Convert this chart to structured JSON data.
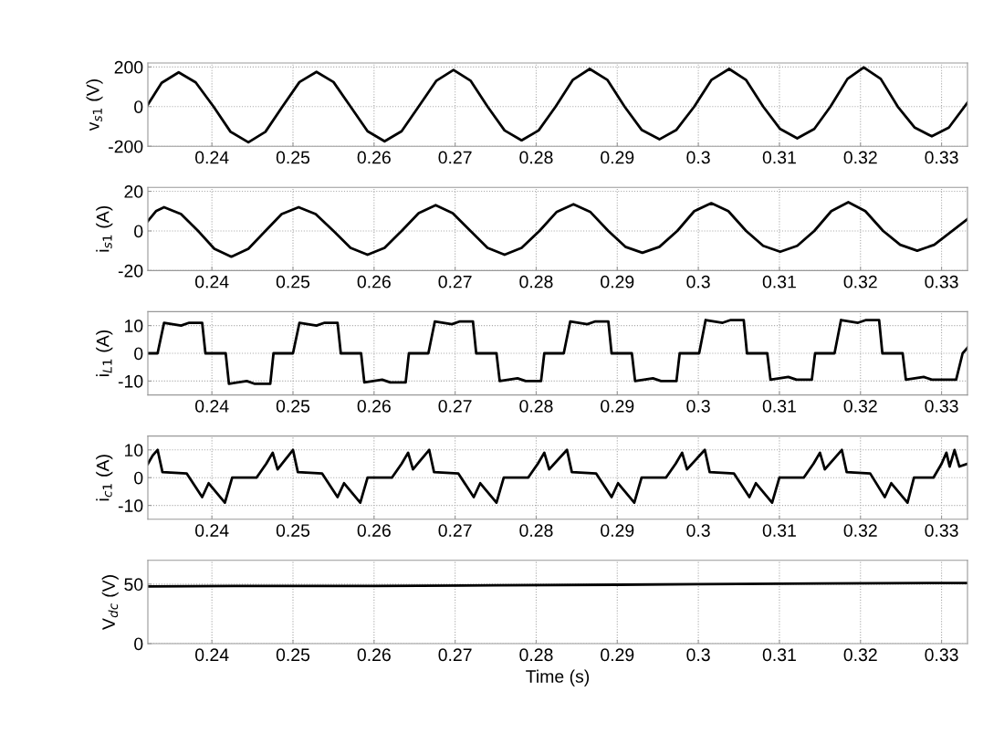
{
  "chart_data": [
    {
      "type": "line",
      "ylabel": "v$_{s1}$ (V)",
      "xlim": [
        0.2321,
        0.3332
      ],
      "xticks": [
        0.24,
        0.25,
        0.26,
        0.27,
        0.28,
        0.29,
        0.3,
        0.31,
        0.32,
        0.33
      ],
      "ylim": [
        -200,
        220
      ],
      "yticks": [
        -200,
        0,
        200
      ],
      "grid": true,
      "x": [
        0.2321,
        0.2338,
        0.2359,
        0.238,
        0.2402,
        0.2423,
        0.2445,
        0.2466,
        0.2487,
        0.2508,
        0.2529,
        0.255,
        0.2571,
        0.2592,
        0.2613,
        0.2634,
        0.2655,
        0.2677,
        0.2698,
        0.2719,
        0.274,
        0.2761,
        0.2782,
        0.2803,
        0.2824,
        0.2845,
        0.2866,
        0.2888,
        0.2909,
        0.293,
        0.2952,
        0.2973,
        0.2995,
        0.3016,
        0.3038,
        0.3059,
        0.308,
        0.3101,
        0.3122,
        0.3143,
        0.3163,
        0.3184,
        0.3204,
        0.3225,
        0.3246,
        0.3267,
        0.3288,
        0.3309,
        0.3332
      ],
      "series": [
        {
          "color": "#000000",
          "values": [
            10,
            120,
            173,
            122,
            0,
            -127,
            -180,
            -127,
            0,
            124,
            175,
            124,
            0,
            -124,
            -175,
            -124,
            0,
            131,
            185,
            131,
            0,
            -120,
            -170,
            -120,
            0,
            134,
            190,
            134,
            0,
            -117,
            -165,
            -117,
            0,
            134,
            190,
            134,
            0,
            -113,
            -160,
            -113,
            0,
            140,
            198,
            140,
            0,
            -106,
            -150,
            -106,
            20
          ]
        }
      ]
    },
    {
      "type": "line",
      "ylabel": "i$_{s1}$ (A)",
      "xlim": [
        0.2321,
        0.3332
      ],
      "xticks": [
        0.24,
        0.25,
        0.26,
        0.27,
        0.28,
        0.29,
        0.3,
        0.31,
        0.32,
        0.33
      ],
      "ylim": [
        -20,
        22
      ],
      "yticks": [
        -20,
        0,
        20
      ],
      "grid": true,
      "x": [
        0.2321,
        0.2331,
        0.2341,
        0.2362,
        0.2383,
        0.2403,
        0.2424,
        0.2445,
        0.2466,
        0.2486,
        0.2507,
        0.2528,
        0.255,
        0.2571,
        0.2592,
        0.2613,
        0.2634,
        0.2655,
        0.2676,
        0.2697,
        0.2719,
        0.274,
        0.2761,
        0.2782,
        0.2804,
        0.2825,
        0.2846,
        0.2867,
        0.2889,
        0.291,
        0.2931,
        0.2952,
        0.2974,
        0.2995,
        0.3016,
        0.3037,
        0.3059,
        0.308,
        0.3101,
        0.3122,
        0.3143,
        0.3164,
        0.3185,
        0.3206,
        0.3228,
        0.3249,
        0.327,
        0.3291,
        0.3332
      ],
      "series": [
        {
          "color": "#000000",
          "values": [
            5,
            10,
            12,
            8.5,
            0,
            -9,
            -13,
            -9,
            0,
            8.5,
            12,
            8.5,
            0,
            -8.5,
            -12,
            -8.5,
            0,
            9,
            13,
            9,
            0,
            -8.5,
            -12,
            -8.5,
            0,
            9.5,
            13.5,
            9.5,
            0,
            -8,
            -11,
            -8,
            0,
            10,
            14,
            10,
            0,
            -7.5,
            -10.5,
            -7.5,
            0,
            10,
            14.5,
            10,
            0,
            -7,
            -10,
            -7,
            6
          ]
        }
      ]
    },
    {
      "type": "line",
      "ylabel": "i$_{L1}$ (A)",
      "xlim": [
        0.2321,
        0.3332
      ],
      "xticks": [
        0.24,
        0.25,
        0.26,
        0.27,
        0.28,
        0.29,
        0.3,
        0.31,
        0.32,
        0.33
      ],
      "ylim": [
        -15,
        15
      ],
      "yticks": [
        -10,
        0,
        10
      ],
      "grid": true,
      "x": [
        0.2321,
        0.2333,
        0.2341,
        0.2362,
        0.2372,
        0.2388,
        0.2392,
        0.2417,
        0.2421,
        0.2443,
        0.2453,
        0.2472,
        0.2476,
        0.25,
        0.2508,
        0.2529,
        0.2539,
        0.2555,
        0.2559,
        0.2584,
        0.2588,
        0.261,
        0.262,
        0.2639,
        0.2643,
        0.2667,
        0.2675,
        0.2696,
        0.2706,
        0.2722,
        0.2726,
        0.2751,
        0.2755,
        0.2777,
        0.2787,
        0.2806,
        0.281,
        0.2834,
        0.2842,
        0.2863,
        0.2873,
        0.2889,
        0.2893,
        0.2918,
        0.2922,
        0.2944,
        0.2954,
        0.2973,
        0.2977,
        0.3001,
        0.3009,
        0.303,
        0.304,
        0.3056,
        0.306,
        0.3085,
        0.3089,
        0.3111,
        0.3121,
        0.314,
        0.3144,
        0.3168,
        0.3176,
        0.3197,
        0.3207,
        0.3223,
        0.3227,
        0.3252,
        0.3256,
        0.3278,
        0.3288,
        0.3318,
        0.3326,
        0.3332
      ],
      "series": [
        {
          "color": "#000000",
          "values": [
            0,
            0,
            11,
            10,
            11,
            11,
            0,
            0,
            -11,
            -10,
            -11,
            -11,
            0,
            0,
            11,
            10,
            11,
            11,
            0,
            0,
            -10.5,
            -9.5,
            -10.5,
            -10.5,
            0,
            0,
            11.5,
            10.5,
            11.5,
            11.5,
            0,
            0,
            -10,
            -9,
            -10,
            -10,
            0,
            0,
            11.5,
            10.5,
            11.5,
            11.5,
            0,
            0,
            -10,
            -9,
            -10,
            -10,
            0,
            0,
            12,
            11,
            12,
            12,
            0,
            0,
            -9.5,
            -8.5,
            -9.5,
            -9.5,
            0,
            0,
            12,
            11,
            12,
            12,
            0,
            0,
            -9.5,
            -8.5,
            -9.5,
            -9.5,
            0,
            2
          ]
        }
      ]
    },
    {
      "type": "line",
      "ylabel": "i$_{c1}$ (A)",
      "xlim": [
        0.2321,
        0.3332
      ],
      "xticks": [
        0.24,
        0.25,
        0.26,
        0.27,
        0.28,
        0.29,
        0.3,
        0.31,
        0.32,
        0.33
      ],
      "ylim": [
        -15,
        15
      ],
      "yticks": [
        -10,
        0,
        10
      ],
      "grid": true,
      "x": [
        0.2321,
        0.2327,
        0.2333,
        0.2339,
        0.2369,
        0.2388,
        0.2396,
        0.2416,
        0.2425,
        0.2455,
        0.2467,
        0.2475,
        0.2481,
        0.25,
        0.2506,
        0.2536,
        0.2555,
        0.2563,
        0.2583,
        0.2592,
        0.2622,
        0.2634,
        0.2642,
        0.2648,
        0.2668,
        0.2674,
        0.2704,
        0.2723,
        0.2731,
        0.2751,
        0.276,
        0.279,
        0.2802,
        0.281,
        0.2816,
        0.2838,
        0.2844,
        0.2874,
        0.2893,
        0.2901,
        0.2921,
        0.293,
        0.296,
        0.2972,
        0.298,
        0.2986,
        0.3008,
        0.3014,
        0.3044,
        0.3063,
        0.3071,
        0.3091,
        0.31,
        0.313,
        0.3142,
        0.315,
        0.3156,
        0.3177,
        0.3183,
        0.3212,
        0.323,
        0.3238,
        0.3258,
        0.3266,
        0.329,
        0.33,
        0.3306,
        0.331,
        0.3316,
        0.3322,
        0.3332
      ],
      "series": [
        {
          "color": "#000000",
          "values": [
            5,
            8,
            10,
            2,
            1.5,
            -7,
            -2,
            -9,
            0,
            0,
            5,
            9,
            3,
            10,
            2,
            1.5,
            -7,
            -2,
            -9,
            0,
            0,
            5,
            9,
            3,
            10,
            2,
            1.5,
            -7,
            -2,
            -9,
            0,
            0,
            5,
            9,
            3,
            10,
            2,
            1.5,
            -7,
            -2,
            -9,
            0,
            0,
            5,
            9,
            3,
            10,
            2,
            1.5,
            -7,
            -2,
            -9,
            0,
            0,
            5,
            9,
            3,
            10,
            2,
            1.5,
            -7,
            -2,
            -9,
            0,
            0,
            5,
            9,
            4,
            10,
            4,
            5
          ]
        }
      ]
    },
    {
      "type": "line",
      "ylabel": "V$_{dc}$ (V)",
      "xlabel": "Time (s)",
      "xlim": [
        0.2321,
        0.3332
      ],
      "xticks": [
        0.24,
        0.25,
        0.26,
        0.27,
        0.28,
        0.29,
        0.3,
        0.31,
        0.32,
        0.33
      ],
      "ylim": [
        0,
        70
      ],
      "yticks": [
        0,
        50
      ],
      "grid": true,
      "x": [
        0.2321,
        0.245,
        0.26,
        0.275,
        0.29,
        0.3,
        0.315,
        0.3332
      ],
      "series": [
        {
          "color": "#000000",
          "values": [
            48,
            48.5,
            48.5,
            49,
            49.5,
            50,
            50.5,
            51
          ]
        }
      ]
    }
  ]
}
